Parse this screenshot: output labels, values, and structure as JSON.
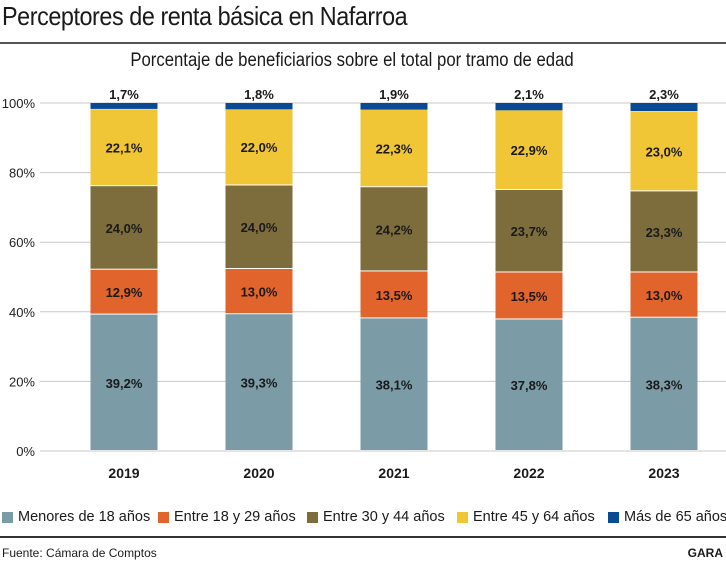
{
  "header": {
    "title": "Perceptores de renta básica en Nafarroa",
    "source": "Fuente: Cámara de Comptos",
    "brand": "GARA"
  },
  "chart_data": {
    "type": "bar",
    "stacked": true,
    "title": "Porcentaje de beneficiarios sobre el total por tramo de edad",
    "xlabel": "",
    "ylabel": "",
    "ylim": [
      0,
      100
    ],
    "yticks": [
      "0%",
      "20%",
      "40%",
      "60%",
      "80%",
      "100%"
    ],
    "grid": true,
    "legend_position": "bottom",
    "categories": [
      "2019",
      "2020",
      "2021",
      "2022",
      "2023"
    ],
    "series": [
      {
        "name": "Menores de 18 años",
        "color": "#7b9ba6",
        "values": [
          39.2,
          39.3,
          38.1,
          37.8,
          38.3
        ],
        "labels": [
          "39,2%",
          "39,3%",
          "38,1%",
          "37,8%",
          "38,3%"
        ]
      },
      {
        "name": "Entre 18 y 29 años",
        "color": "#e0642c",
        "values": [
          12.9,
          13.0,
          13.5,
          13.5,
          13.0
        ],
        "labels": [
          "12,9%",
          "13,0%",
          "13,5%",
          "13,5%",
          "13,0%"
        ]
      },
      {
        "name": "Entre 30 y 44 años",
        "color": "#7d6d3d",
        "values": [
          24.0,
          24.0,
          24.2,
          23.7,
          23.3
        ],
        "labels": [
          "24,0%",
          "24,0%",
          "24,2%",
          "23,7%",
          "23,3%"
        ]
      },
      {
        "name": "Entre 45 y 64 años",
        "color": "#f0c636",
        "values": [
          22.1,
          22.0,
          22.3,
          22.9,
          23.0
        ],
        "labels": [
          "22,1%",
          "22,0%",
          "22,3%",
          "22,9%",
          "23,0%"
        ]
      },
      {
        "name": "Más de 65 años",
        "color": "#0a4a95",
        "values": [
          1.7,
          1.8,
          1.9,
          2.1,
          2.3
        ],
        "labels": [
          "1,7%",
          "1,8%",
          "1,9%",
          "2,1%",
          "2,3%"
        ]
      }
    ]
  }
}
